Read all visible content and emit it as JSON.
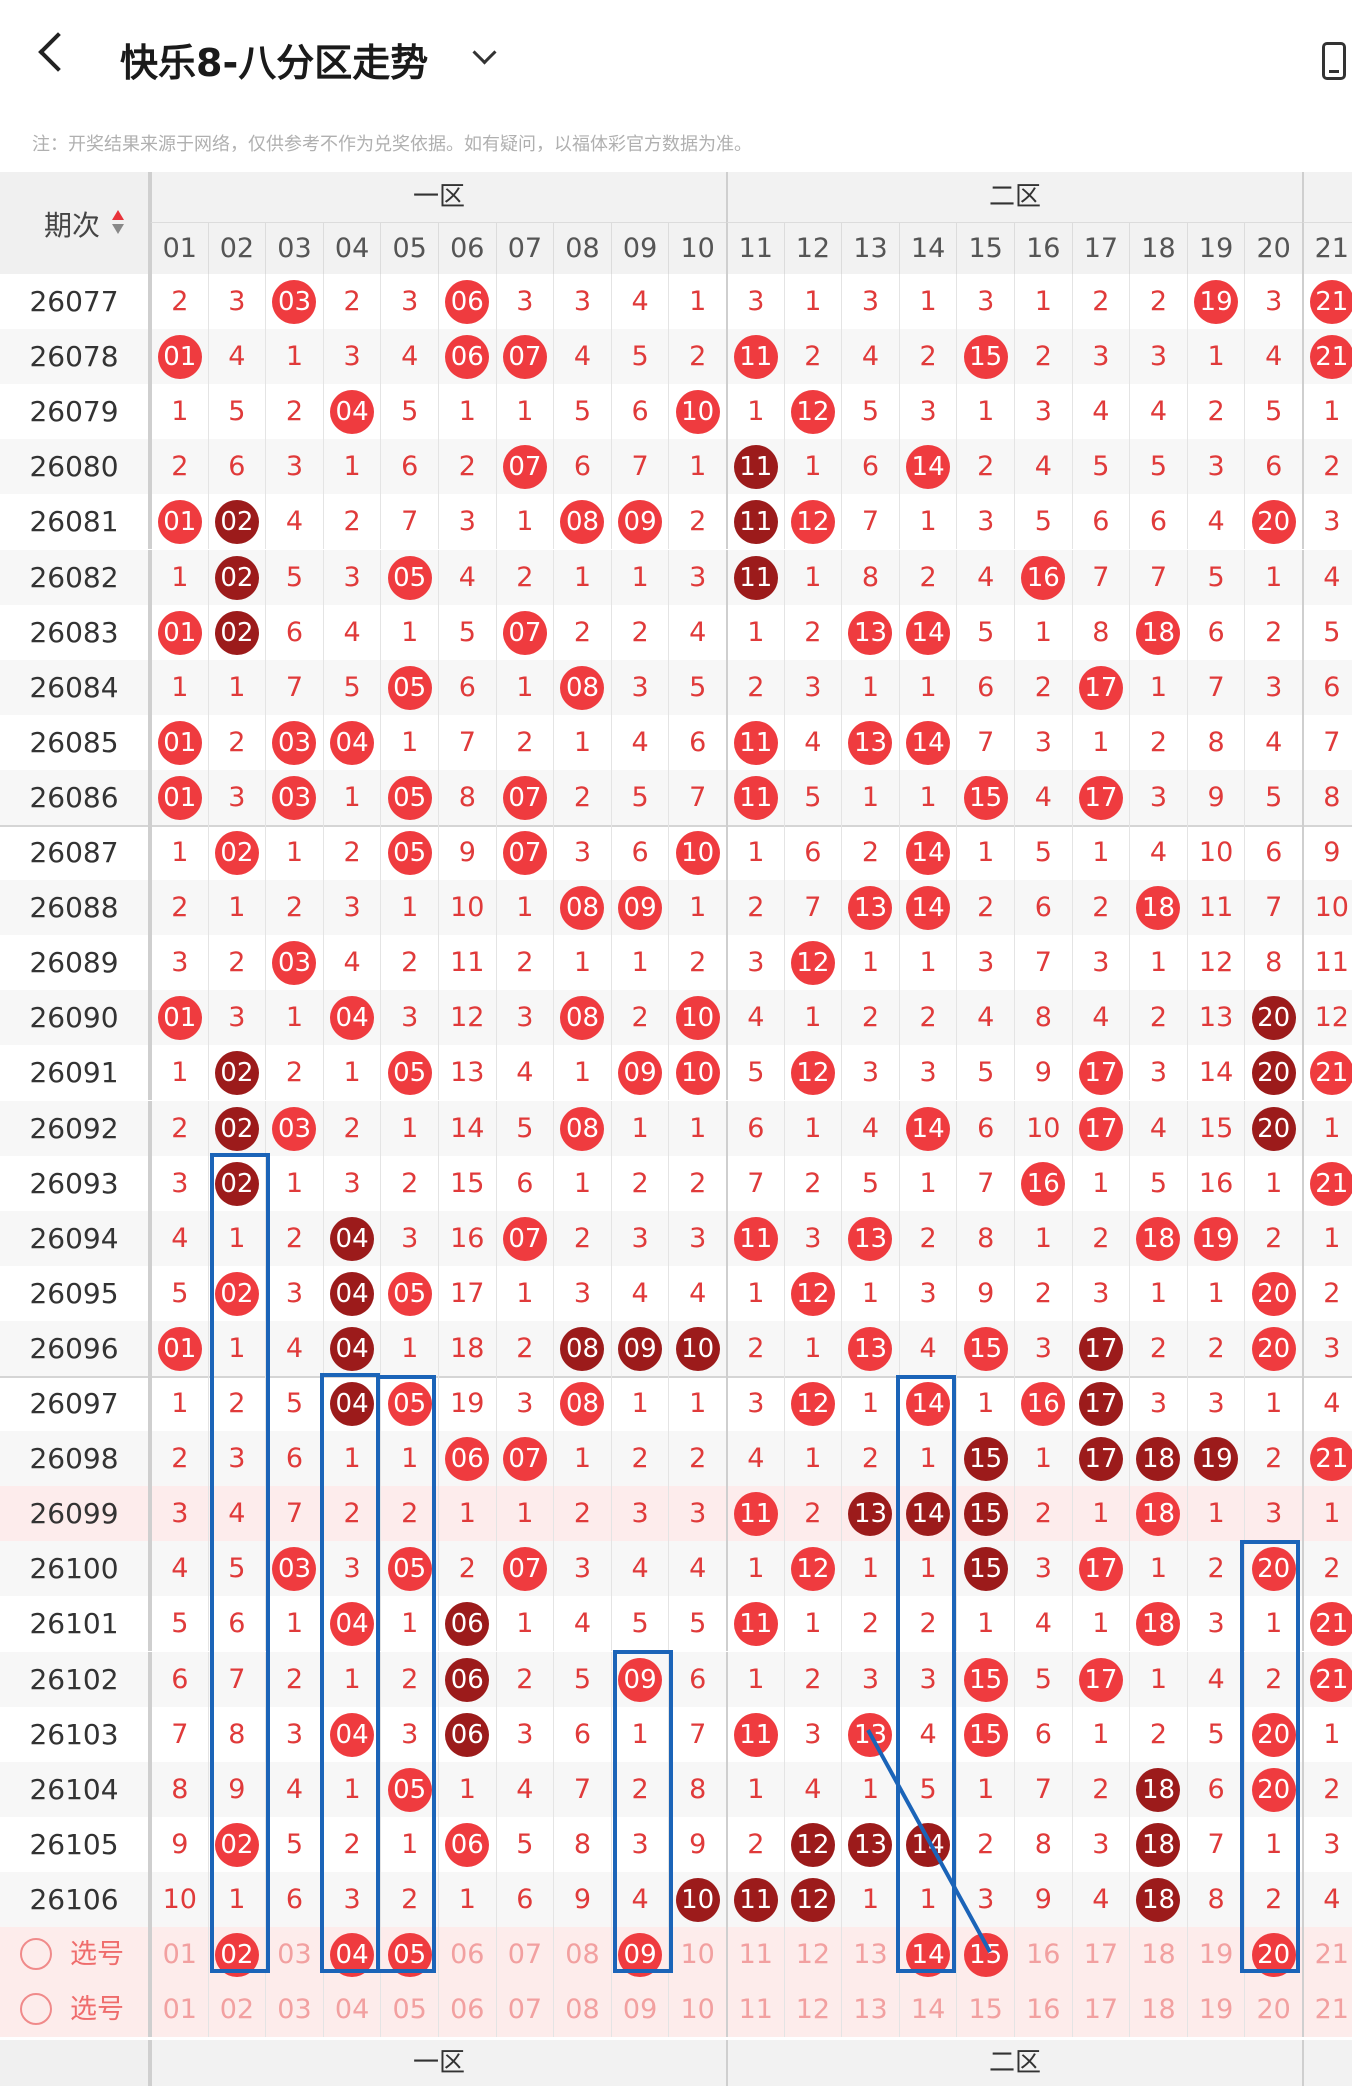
{
  "header": {
    "title": "快乐8-八分区走势"
  },
  "notice": "注：开奖结果来源于网络，仅供参考不作为兑奖依据。如有疑问，以福体彩官方数据为准。",
  "table": {
    "period_label": "期次",
    "zones": [
      "一区",
      "二区"
    ],
    "numbers": [
      "01",
      "02",
      "03",
      "04",
      "05",
      "06",
      "07",
      "08",
      "09",
      "10",
      "11",
      "12",
      "13",
      "14",
      "15",
      "16",
      "17",
      "18",
      "19",
      "20",
      "21"
    ],
    "rows": [
      {
        "p": "26077",
        "c": [
          "2",
          "3",
          "03",
          "2",
          "3",
          "06",
          "3",
          "3",
          "4",
          "1",
          "3",
          "1",
          "3",
          "1",
          "3",
          "1",
          "2",
          "2",
          "19",
          "3",
          "21"
        ],
        "d": []
      },
      {
        "p": "26078",
        "c": [
          "01",
          "4",
          "1",
          "3",
          "4",
          "06",
          "07",
          "4",
          "5",
          "2",
          "11",
          "2",
          "4",
          "2",
          "15",
          "2",
          "3",
          "3",
          "1",
          "4",
          "21"
        ],
        "d": []
      },
      {
        "p": "26079",
        "c": [
          "1",
          "5",
          "2",
          "04",
          "5",
          "1",
          "1",
          "5",
          "6",
          "10",
          "1",
          "12",
          "5",
          "3",
          "1",
          "3",
          "4",
          "4",
          "2",
          "5",
          "1"
        ],
        "d": []
      },
      {
        "p": "26080",
        "c": [
          "2",
          "6",
          "3",
          "1",
          "6",
          "2",
          "07",
          "6",
          "7",
          "1",
          "11",
          "1",
          "6",
          "14",
          "2",
          "4",
          "5",
          "5",
          "3",
          "6",
          "2"
        ],
        "d": [
          10
        ]
      },
      {
        "p": "26081",
        "c": [
          "01",
          "02",
          "4",
          "2",
          "7",
          "3",
          "1",
          "08",
          "09",
          "2",
          "11",
          "12",
          "7",
          "1",
          "3",
          "5",
          "6",
          "6",
          "4",
          "20",
          "3"
        ],
        "d": [
          1,
          10
        ]
      },
      {
        "p": "26082",
        "c": [
          "1",
          "02",
          "5",
          "3",
          "05",
          "4",
          "2",
          "1",
          "1",
          "3",
          "11",
          "1",
          "8",
          "2",
          "4",
          "16",
          "7",
          "7",
          "5",
          "1",
          "4"
        ],
        "d": [
          1,
          10
        ]
      },
      {
        "p": "26083",
        "c": [
          "01",
          "02",
          "6",
          "4",
          "1",
          "5",
          "07",
          "2",
          "2",
          "4",
          "1",
          "2",
          "13",
          "14",
          "5",
          "1",
          "8",
          "18",
          "6",
          "2",
          "5"
        ],
        "d": [
          1
        ]
      },
      {
        "p": "26084",
        "c": [
          "1",
          "1",
          "7",
          "5",
          "05",
          "6",
          "1",
          "08",
          "3",
          "5",
          "2",
          "3",
          "1",
          "1",
          "6",
          "2",
          "17",
          "1",
          "7",
          "3",
          "6"
        ],
        "d": []
      },
      {
        "p": "26085",
        "c": [
          "01",
          "2",
          "03",
          "04",
          "1",
          "7",
          "2",
          "1",
          "4",
          "6",
          "11",
          "4",
          "13",
          "14",
          "7",
          "3",
          "1",
          "2",
          "8",
          "4",
          "7"
        ],
        "d": []
      },
      {
        "p": "26086",
        "c": [
          "01",
          "3",
          "03",
          "1",
          "05",
          "8",
          "07",
          "2",
          "5",
          "7",
          "11",
          "5",
          "1",
          "1",
          "15",
          "4",
          "17",
          "3",
          "9",
          "5",
          "8"
        ],
        "d": []
      },
      {
        "p": "26087",
        "c": [
          "1",
          "02",
          "1",
          "2",
          "05",
          "9",
          "07",
          "3",
          "6",
          "10",
          "1",
          "6",
          "2",
          "14",
          "1",
          "5",
          "1",
          "4",
          "10",
          "6",
          "9"
        ],
        "d": []
      },
      {
        "p": "26088",
        "c": [
          "2",
          "1",
          "2",
          "3",
          "1",
          "10",
          "1",
          "08",
          "09",
          "1",
          "2",
          "7",
          "13",
          "14",
          "2",
          "6",
          "2",
          "18",
          "11",
          "7",
          "10"
        ],
        "d": []
      },
      {
        "p": "26089",
        "c": [
          "3",
          "2",
          "03",
          "4",
          "2",
          "11",
          "2",
          "1",
          "1",
          "2",
          "3",
          "12",
          "1",
          "1",
          "3",
          "7",
          "3",
          "1",
          "12",
          "8",
          "11"
        ],
        "d": []
      },
      {
        "p": "26090",
        "c": [
          "01",
          "3",
          "1",
          "04",
          "3",
          "12",
          "3",
          "08",
          "2",
          "10",
          "4",
          "1",
          "2",
          "2",
          "4",
          "8",
          "4",
          "2",
          "13",
          "20",
          "12"
        ],
        "d": [
          19
        ]
      },
      {
        "p": "26091",
        "c": [
          "1",
          "02",
          "2",
          "1",
          "05",
          "13",
          "4",
          "1",
          "09",
          "10",
          "5",
          "12",
          "3",
          "3",
          "5",
          "9",
          "17",
          "3",
          "14",
          "20",
          "21"
        ],
        "d": [
          1,
          19
        ]
      },
      {
        "p": "26092",
        "c": [
          "2",
          "02",
          "03",
          "2",
          "1",
          "14",
          "5",
          "08",
          "1",
          "1",
          "6",
          "1",
          "4",
          "14",
          "6",
          "10",
          "17",
          "4",
          "15",
          "20",
          "1"
        ],
        "d": [
          1,
          19
        ]
      },
      {
        "p": "26093",
        "c": [
          "3",
          "02",
          "1",
          "3",
          "2",
          "15",
          "6",
          "1",
          "2",
          "2",
          "7",
          "2",
          "5",
          "1",
          "7",
          "16",
          "1",
          "5",
          "16",
          "1",
          "21"
        ],
        "d": [
          1
        ]
      },
      {
        "p": "26094",
        "c": [
          "4",
          "1",
          "2",
          "04",
          "3",
          "16",
          "07",
          "2",
          "3",
          "3",
          "11",
          "3",
          "13",
          "2",
          "8",
          "1",
          "2",
          "18",
          "19",
          "2",
          "1"
        ],
        "d": [
          3
        ]
      },
      {
        "p": "26095",
        "c": [
          "5",
          "02",
          "3",
          "04",
          "05",
          "17",
          "1",
          "3",
          "4",
          "4",
          "1",
          "12",
          "1",
          "3",
          "9",
          "2",
          "3",
          "1",
          "1",
          "20",
          "2"
        ],
        "d": [
          3
        ]
      },
      {
        "p": "26096",
        "c": [
          "01",
          "1",
          "4",
          "04",
          "1",
          "18",
          "2",
          "08",
          "09",
          "10",
          "2",
          "1",
          "13",
          "4",
          "15",
          "3",
          "17",
          "2",
          "2",
          "20",
          "3"
        ],
        "d": [
          3,
          7,
          8,
          9,
          16
        ]
      },
      {
        "p": "26097",
        "c": [
          "1",
          "2",
          "5",
          "04",
          "05",
          "19",
          "3",
          "08",
          "1",
          "1",
          "3",
          "12",
          "1",
          "14",
          "1",
          "16",
          "17",
          "3",
          "3",
          "1",
          "4"
        ],
        "d": [
          3,
          16
        ]
      },
      {
        "p": "26098",
        "c": [
          "2",
          "3",
          "6",
          "1",
          "1",
          "06",
          "07",
          "1",
          "2",
          "2",
          "4",
          "1",
          "2",
          "1",
          "15",
          "1",
          "17",
          "18",
          "19",
          "2",
          "21"
        ],
        "d": [
          14,
          16,
          17,
          18
        ]
      },
      {
        "p": "26099",
        "c": [
          "3",
          "4",
          "7",
          "2",
          "2",
          "1",
          "1",
          "2",
          "3",
          "3",
          "11",
          "2",
          "13",
          "14",
          "15",
          "2",
          "1",
          "18",
          "1",
          "3",
          "1"
        ],
        "d": [
          12,
          13,
          14
        ]
      },
      {
        "p": "26100",
        "c": [
          "4",
          "5",
          "03",
          "3",
          "05",
          "2",
          "07",
          "3",
          "4",
          "4",
          "1",
          "12",
          "1",
          "1",
          "15",
          "3",
          "17",
          "1",
          "2",
          "20",
          "2"
        ],
        "d": [
          14
        ]
      },
      {
        "p": "26101",
        "c": [
          "5",
          "6",
          "1",
          "04",
          "1",
          "06",
          "1",
          "4",
          "5",
          "5",
          "11",
          "1",
          "2",
          "2",
          "1",
          "4",
          "1",
          "18",
          "3",
          "1",
          "21"
        ],
        "d": [
          5
        ]
      },
      {
        "p": "26102",
        "c": [
          "6",
          "7",
          "2",
          "1",
          "2",
          "06",
          "2",
          "5",
          "09",
          "6",
          "1",
          "2",
          "3",
          "3",
          "15",
          "5",
          "17",
          "1",
          "4",
          "2",
          "21"
        ],
        "d": [
          5
        ]
      },
      {
        "p": "26103",
        "c": [
          "7",
          "8",
          "3",
          "04",
          "3",
          "06",
          "3",
          "6",
          "1",
          "7",
          "11",
          "3",
          "13",
          "4",
          "15",
          "6",
          "1",
          "2",
          "5",
          "20",
          "1"
        ],
        "d": [
          5
        ]
      },
      {
        "p": "26104",
        "c": [
          "8",
          "9",
          "4",
          "1",
          "05",
          "1",
          "4",
          "7",
          "2",
          "8",
          "1",
          "4",
          "1",
          "5",
          "1",
          "7",
          "2",
          "18",
          "6",
          "20",
          "2"
        ],
        "d": [
          17
        ]
      },
      {
        "p": "26105",
        "c": [
          "9",
          "02",
          "5",
          "2",
          "1",
          "06",
          "5",
          "8",
          "3",
          "9",
          "2",
          "12",
          "13",
          "14",
          "2",
          "8",
          "3",
          "18",
          "7",
          "1",
          "3"
        ],
        "d": [
          11,
          12,
          13,
          17
        ]
      },
      {
        "p": "26106",
        "c": [
          "10",
          "1",
          "6",
          "3",
          "2",
          "1",
          "6",
          "9",
          "4",
          "10",
          "11",
          "12",
          "1",
          "1",
          "3",
          "9",
          "4",
          "18",
          "8",
          "2",
          "4"
        ],
        "d": [
          9,
          10,
          11,
          17
        ]
      }
    ],
    "selection_rows": [
      {
        "label": "选号",
        "c": [
          "01",
          "02",
          "03",
          "04",
          "05",
          "06",
          "07",
          "08",
          "09",
          "10",
          "11",
          "12",
          "13",
          "14",
          "15",
          "16",
          "17",
          "18",
          "19",
          "20",
          "21"
        ],
        "b": [
          1,
          3,
          4,
          8,
          13,
          14,
          19
        ]
      },
      {
        "label": "选号",
        "c": [
          "01",
          "02",
          "03",
          "04",
          "05",
          "06",
          "07",
          "08",
          "09",
          "10",
          "11",
          "12",
          "13",
          "14",
          "15",
          "16",
          "17",
          "18",
          "19",
          "20",
          "21"
        ],
        "b": []
      }
    ]
  }
}
